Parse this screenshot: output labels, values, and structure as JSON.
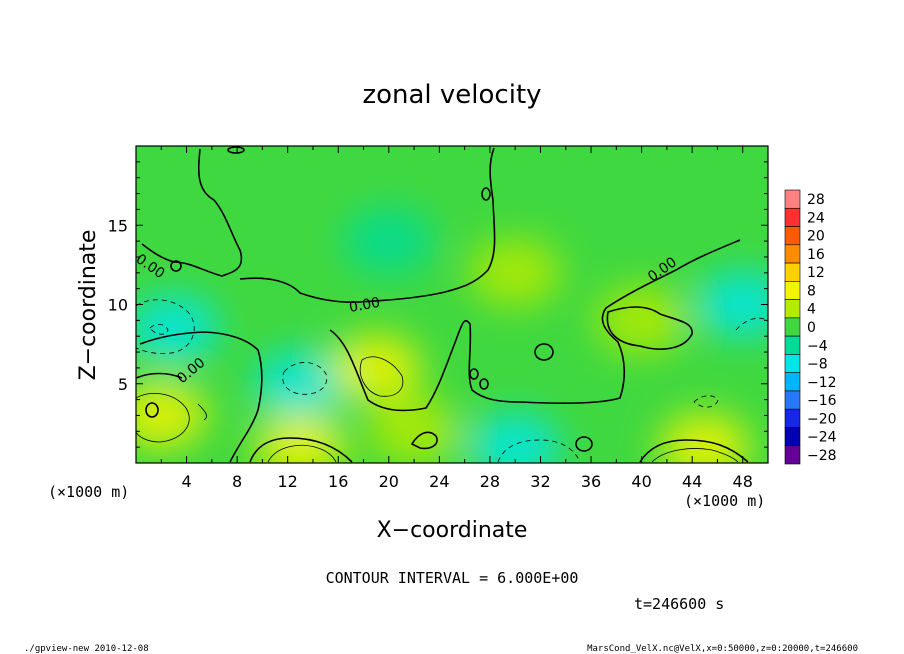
{
  "chart_data": {
    "type": "heatmap",
    "title": "zonal velocity",
    "xlabel": "X−coordinate",
    "ylabel": "Z−coordinate",
    "x_unit_label": "(×1000 m)",
    "z_unit_label": "(×1000 m)",
    "xlim": [
      0,
      50
    ],
    "ylim": [
      0,
      20
    ],
    "x_ticks": [
      "4",
      "8",
      "12",
      "16",
      "20",
      "24",
      "28",
      "32",
      "36",
      "40",
      "44",
      "48"
    ],
    "y_ticks": [
      "5",
      "10",
      "15"
    ],
    "contour_interval_text": "CONTOUR INTERVAL = 6.000E+00",
    "contour_label": "0.00",
    "time_text": "t=246600 s",
    "colorbar": {
      "levels": [
        -28,
        -24,
        -20,
        -16,
        -12,
        -8,
        -4,
        0,
        4,
        8,
        12,
        16,
        20,
        24,
        28
      ],
      "labels": [
        "28",
        "24",
        "20",
        "16",
        "12",
        "8",
        "4",
        "0",
        "−4",
        "−8",
        "−12",
        "−16",
        "−20",
        "−24",
        "−28"
      ],
      "colors": [
        "#ff8080",
        "#ff3030",
        "#ff5a00",
        "#ff8c00",
        "#ffd000",
        "#f4f400",
        "#b4ec00",
        "#40d840",
        "#00dc96",
        "#00e6e6",
        "#00b4ff",
        "#2878ff",
        "#1428e6",
        "#0000b4",
        "#640096"
      ]
    },
    "field_base_color": "#40d840",
    "field_regions": [
      {
        "x": 2,
        "z": 3,
        "value": 10
      },
      {
        "x": 3,
        "z": 8.5,
        "value": -8
      },
      {
        "x": 13,
        "z": 5,
        "value": -6
      },
      {
        "x": 13,
        "z": 1,
        "value": 9
      },
      {
        "x": 19,
        "z": 6,
        "value": 8
      },
      {
        "x": 22,
        "z": 2,
        "value": 6
      },
      {
        "x": 20,
        "z": 14,
        "value": -4
      },
      {
        "x": 30,
        "z": 12,
        "value": 4
      },
      {
        "x": 30,
        "z": 1,
        "value": -7
      },
      {
        "x": 45,
        "z": 1,
        "value": 10
      },
      {
        "x": 48,
        "z": 10,
        "value": -6
      },
      {
        "x": 40,
        "z": 9,
        "value": 3
      }
    ]
  },
  "footer": {
    "left": "./gpview-new   2010-12-08",
    "right": "MarsCond_VelX.nc@VelX,x=0:50000,z=0:20000,t=246600"
  }
}
